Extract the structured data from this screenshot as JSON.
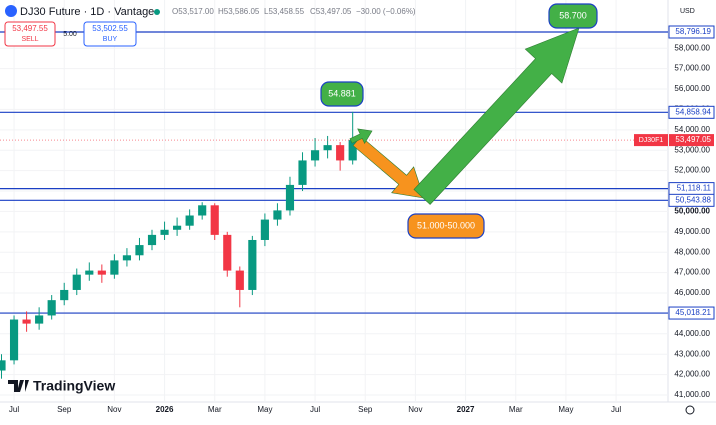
{
  "chart_data": {
    "type": "candlestick",
    "header": {
      "symbol": "DJ30 Future · 1D · Vantage",
      "open": "O53,517.00",
      "high": "H53,586.05",
      "low": "L53,458.55",
      "close": "C53,497.05",
      "change": "−30.00 (−0.06%)",
      "sell_price": "53,497.55",
      "sell_label": "SELL",
      "spread": "5.00",
      "buy_price": "53,502.55",
      "buy_label": "BUY"
    },
    "logo": "TradingView",
    "currency": "USD",
    "x": [
      -0.5,
      0,
      0.5,
      1,
      1.5,
      2,
      2.5,
      3,
      3.5,
      4,
      4.5,
      5,
      5.5,
      6,
      6.5,
      7,
      7.5,
      8,
      8.5,
      9,
      9.5,
      10,
      10.5,
      11,
      11.5,
      12,
      12.5,
      13,
      13.5
    ],
    "open": [
      42200,
      42700,
      44700,
      44500,
      44900,
      45650,
      46150,
      46900,
      47100,
      46900,
      47600,
      47850,
      48350,
      48850,
      49100,
      49300,
      49800,
      50300,
      48850,
      47100,
      46150,
      48600,
      49600,
      50050,
      51300,
      52500,
      53000,
      53250,
      52500
    ],
    "high": [
      43000,
      44900,
      45100,
      45300,
      45900,
      46500,
      47200,
      47500,
      47400,
      47900,
      48200,
      48700,
      49100,
      49500,
      49700,
      50100,
      50450,
      50400,
      49000,
      47300,
      48800,
      49900,
      50400,
      51700,
      52900,
      53600,
      53700,
      53400,
      54881
    ],
    "low": [
      41800,
      42500,
      44100,
      44200,
      44700,
      45400,
      45900,
      46600,
      46500,
      46700,
      47300,
      47600,
      48100,
      48600,
      48800,
      49100,
      49600,
      48600,
      46800,
      45300,
      45900,
      48300,
      49300,
      49800,
      51000,
      52200,
      52600,
      52000,
      52300
    ],
    "close": [
      42700,
      44700,
      44500,
      44900,
      45650,
      46150,
      46900,
      47100,
      46900,
      47600,
      47850,
      48350,
      48850,
      49100,
      49300,
      49800,
      50300,
      48850,
      47100,
      46150,
      48600,
      49600,
      50050,
      51300,
      52500,
      53000,
      53250,
      52500,
      53497
    ],
    "up_color": "#089981",
    "down_color": "#f23645",
    "xlim": [
      -0.56,
      26.07
    ],
    "ylim": [
      40657,
      60365
    ],
    "xticks": [
      {
        "value": 0,
        "label": "Jul"
      },
      {
        "value": 2,
        "label": "Sep"
      },
      {
        "value": 4,
        "label": "Nov"
      },
      {
        "value": 6,
        "label": "2026"
      },
      {
        "value": 8,
        "label": "Mar"
      },
      {
        "value": 10,
        "label": "May"
      },
      {
        "value": 12,
        "label": "Jul"
      },
      {
        "value": 14,
        "label": "Sep"
      },
      {
        "value": 16,
        "label": "Nov"
      },
      {
        "value": 18,
        "label": "2027"
      },
      {
        "value": 20,
        "label": "Mar"
      },
      {
        "value": 22,
        "label": "May"
      },
      {
        "value": 24,
        "label": "Jul"
      }
    ],
    "yticks": [
      {
        "value": 41000,
        "label": "41,000.00"
      },
      {
        "value": 42000,
        "label": "42,000.00"
      },
      {
        "value": 43000,
        "label": "43,000.00"
      },
      {
        "value": 44000,
        "label": "44,000.00"
      },
      {
        "value": 45000,
        "label": "45,000.00"
      },
      {
        "value": 46000,
        "label": "46,000.00"
      },
      {
        "value": 47000,
        "label": "47,000.00"
      },
      {
        "value": 48000,
        "label": "48,000.00"
      },
      {
        "value": 49000,
        "label": "49,000.00"
      },
      {
        "value": 50000,
        "label": "50,000.00"
      },
      {
        "value": 51000,
        "label": "51,000.00"
      },
      {
        "value": 52000,
        "label": "52,000.00"
      },
      {
        "value": 53000,
        "label": "53,000.00"
      },
      {
        "value": 54000,
        "label": "54,000.00"
      },
      {
        "value": 55000,
        "label": "55,000.00"
      },
      {
        "value": 56000,
        "label": "56,000.00"
      },
      {
        "value": 57000,
        "label": "57,000.00"
      },
      {
        "value": 58000,
        "label": "58,000.00"
      }
    ],
    "levels": [
      {
        "value": 58796.19,
        "label": "58,796.19"
      },
      {
        "value": 54858.94,
        "label": "54,858.94"
      },
      {
        "value": 51118.11,
        "label": "51,118.11"
      },
      {
        "value": 50543.88,
        "label": "50,543.88"
      },
      {
        "value": 45018.21,
        "label": "45,018.21"
      }
    ],
    "level_color": "#1a3fc4",
    "last_price": {
      "value": 53497.05,
      "label": "53,497.05",
      "symbol": "DJ30F1"
    },
    "annotations": [
      "54.881",
      "58.700",
      "51.000-50.000"
    ]
  }
}
